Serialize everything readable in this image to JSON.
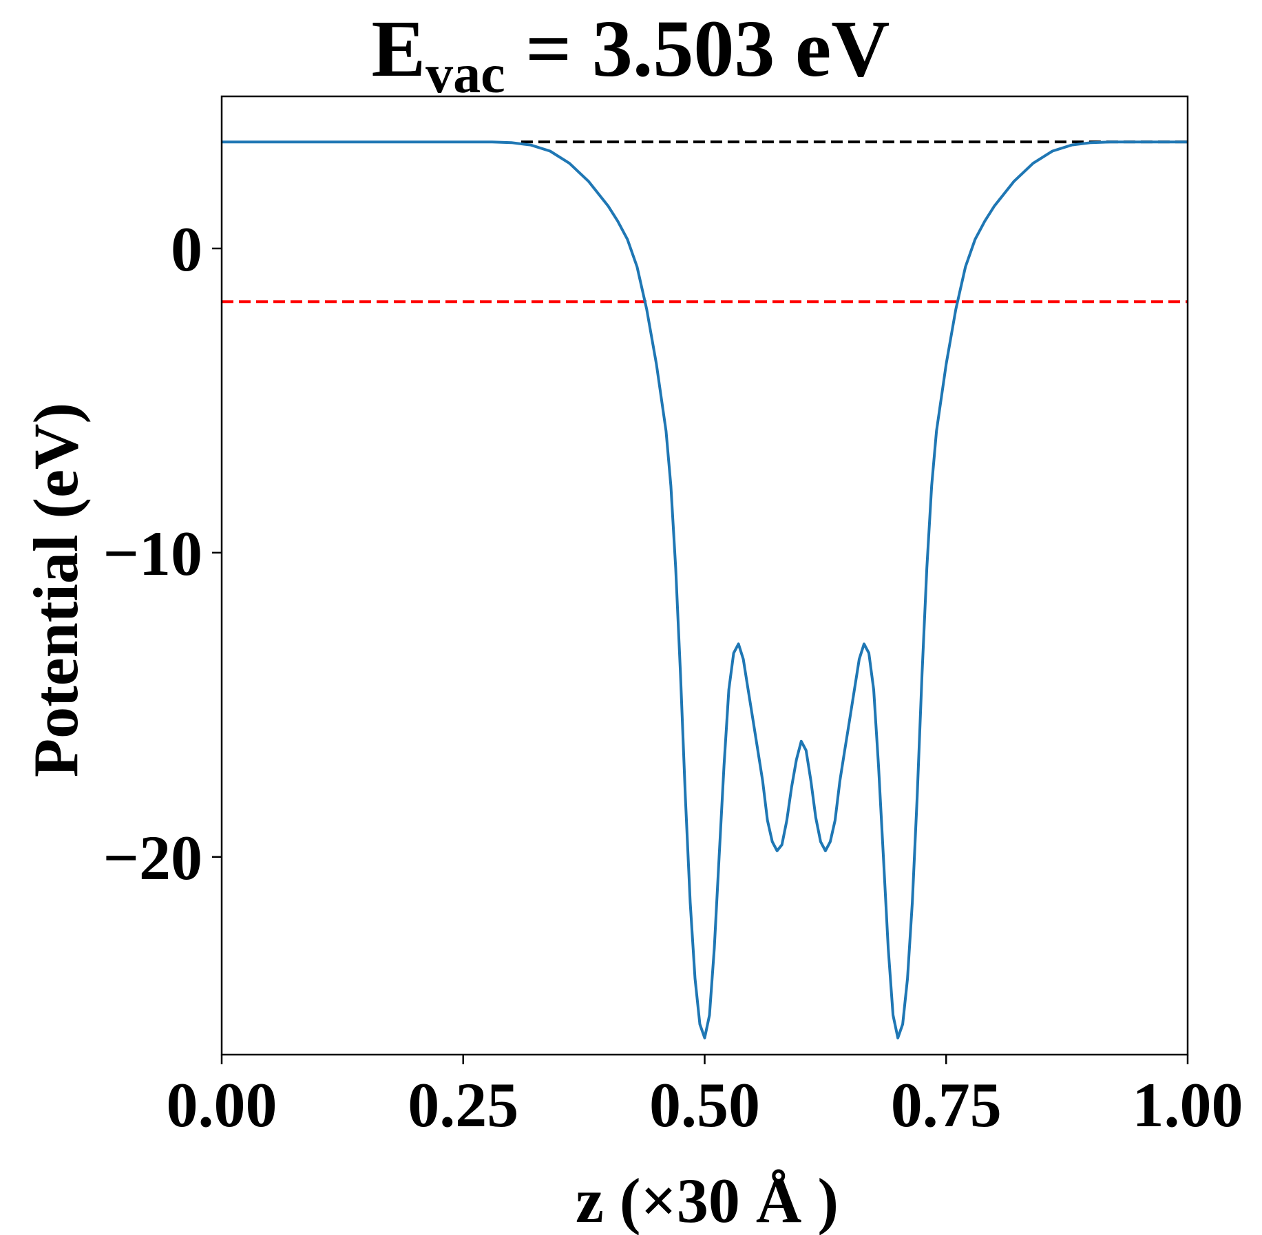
{
  "chart_data": {
    "type": "line",
    "title": {
      "main": "E",
      "subscript": "vac",
      "rest": " = 3.503 eV"
    },
    "xlabel": "z (×30 Å )",
    "ylabel": "Potential (eV)",
    "xlim": [
      0,
      1
    ],
    "ylim": [
      -26.5,
      5
    ],
    "grid": false,
    "x_ticks": [
      {
        "value": 0.0,
        "label": "0.00"
      },
      {
        "value": 0.25,
        "label": "0.25"
      },
      {
        "value": 0.5,
        "label": "0.50"
      },
      {
        "value": 0.75,
        "label": "0.75"
      },
      {
        "value": 1.0,
        "label": "1.00"
      }
    ],
    "y_ticks": [
      {
        "value": 0,
        "label": "0"
      },
      {
        "value": -10,
        "label": "−10"
      },
      {
        "value": -20,
        "label": "−20"
      }
    ],
    "colors": {
      "potential": "#1f77b4",
      "vacuum_level": "#000000",
      "fermi_level": "#ff0000"
    },
    "reference_lines": [
      {
        "y": 3.503,
        "x_start": 0.31,
        "x_end": 1.0,
        "color": "#000000",
        "style": "dashed"
      },
      {
        "y": -1.75,
        "x_start": 0.0,
        "x_end": 1.0,
        "color": "#ff0000",
        "style": "dashed"
      }
    ],
    "series": [
      {
        "color": "#1f77b4",
        "points": [
          [
            0.0,
            3.5
          ],
          [
            0.05,
            3.5
          ],
          [
            0.1,
            3.5
          ],
          [
            0.15,
            3.5
          ],
          [
            0.2,
            3.5
          ],
          [
            0.25,
            3.5
          ],
          [
            0.28,
            3.5
          ],
          [
            0.3,
            3.48
          ],
          [
            0.32,
            3.4
          ],
          [
            0.34,
            3.2
          ],
          [
            0.36,
            2.8
          ],
          [
            0.38,
            2.2
          ],
          [
            0.4,
            1.4
          ],
          [
            0.41,
            0.9
          ],
          [
            0.42,
            0.3
          ],
          [
            0.43,
            -0.6
          ],
          [
            0.44,
            -2.0
          ],
          [
            0.45,
            -3.8
          ],
          [
            0.46,
            -6.0
          ],
          [
            0.465,
            -7.8
          ],
          [
            0.47,
            -10.5
          ],
          [
            0.475,
            -14.0
          ],
          [
            0.48,
            -18.0
          ],
          [
            0.485,
            -21.5
          ],
          [
            0.49,
            -24.0
          ],
          [
            0.495,
            -25.5
          ],
          [
            0.5,
            -25.95
          ],
          [
            0.505,
            -25.2
          ],
          [
            0.51,
            -23.0
          ],
          [
            0.515,
            -20.0
          ],
          [
            0.52,
            -17.0
          ],
          [
            0.525,
            -14.5
          ],
          [
            0.53,
            -13.3
          ],
          [
            0.535,
            -13.0
          ],
          [
            0.54,
            -13.5
          ],
          [
            0.545,
            -14.5
          ],
          [
            0.55,
            -15.5
          ],
          [
            0.555,
            -16.5
          ],
          [
            0.56,
            -17.5
          ],
          [
            0.565,
            -18.8
          ],
          [
            0.57,
            -19.5
          ],
          [
            0.575,
            -19.8
          ],
          [
            0.58,
            -19.6
          ],
          [
            0.585,
            -18.8
          ],
          [
            0.59,
            -17.7
          ],
          [
            0.595,
            -16.8
          ],
          [
            0.6,
            -16.2
          ],
          [
            0.605,
            -16.5
          ],
          [
            0.61,
            -17.5
          ],
          [
            0.615,
            -18.7
          ],
          [
            0.62,
            -19.5
          ],
          [
            0.625,
            -19.8
          ],
          [
            0.63,
            -19.5
          ],
          [
            0.635,
            -18.8
          ],
          [
            0.64,
            -17.5
          ],
          [
            0.645,
            -16.5
          ],
          [
            0.65,
            -15.5
          ],
          [
            0.655,
            -14.5
          ],
          [
            0.66,
            -13.5
          ],
          [
            0.665,
            -13.0
          ],
          [
            0.67,
            -13.3
          ],
          [
            0.675,
            -14.5
          ],
          [
            0.68,
            -17.0
          ],
          [
            0.685,
            -20.0
          ],
          [
            0.69,
            -23.0
          ],
          [
            0.695,
            -25.2
          ],
          [
            0.7,
            -25.95
          ],
          [
            0.705,
            -25.5
          ],
          [
            0.71,
            -24.0
          ],
          [
            0.715,
            -21.5
          ],
          [
            0.72,
            -18.0
          ],
          [
            0.725,
            -14.0
          ],
          [
            0.73,
            -10.5
          ],
          [
            0.735,
            -7.8
          ],
          [
            0.74,
            -6.0
          ],
          [
            0.75,
            -3.8
          ],
          [
            0.76,
            -2.0
          ],
          [
            0.77,
            -0.6
          ],
          [
            0.78,
            0.3
          ],
          [
            0.79,
            0.9
          ],
          [
            0.8,
            1.4
          ],
          [
            0.82,
            2.2
          ],
          [
            0.84,
            2.8
          ],
          [
            0.86,
            3.2
          ],
          [
            0.88,
            3.4
          ],
          [
            0.9,
            3.48
          ],
          [
            0.92,
            3.5
          ],
          [
            0.95,
            3.5
          ],
          [
            1.0,
            3.5
          ]
        ]
      }
    ]
  }
}
